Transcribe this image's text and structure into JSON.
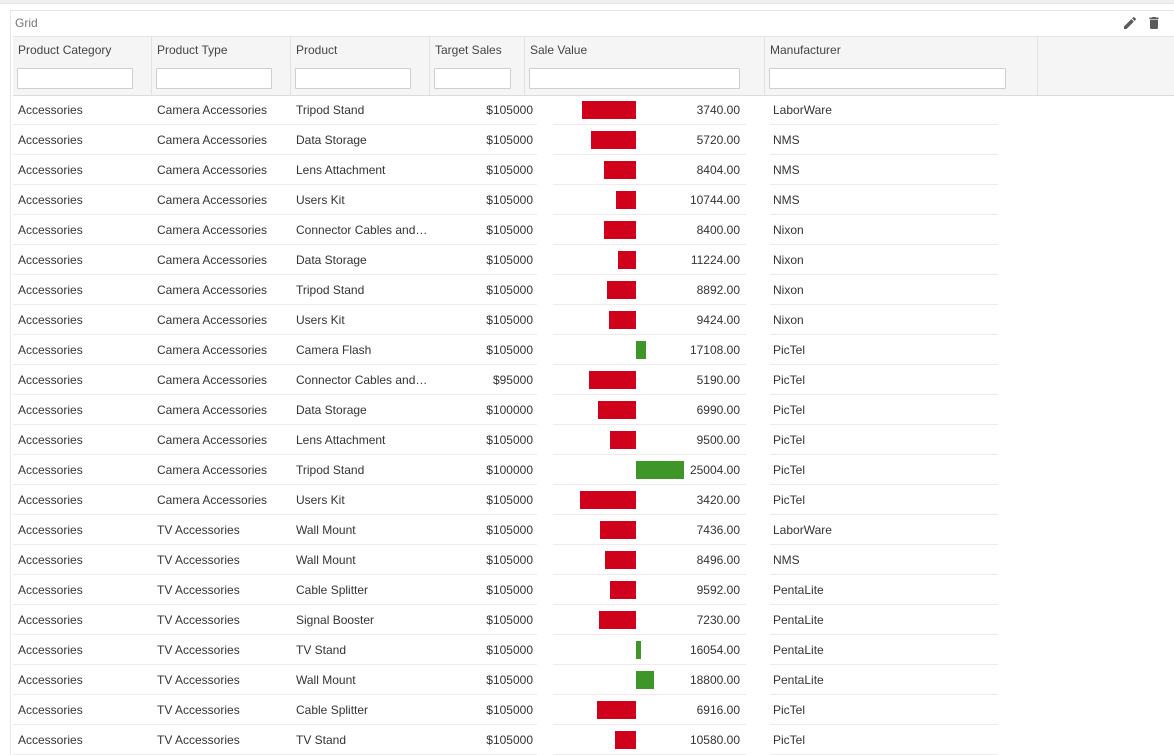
{
  "panel": {
    "title": "Grid",
    "edit_icon": "pencil-icon",
    "delete_icon": "trash-icon"
  },
  "colors": {
    "positive": "#3f9628",
    "negative": "#d0021b"
  },
  "columns": [
    {
      "key": "category",
      "label": "Product Category",
      "filter_value": ""
    },
    {
      "key": "type",
      "label": "Product Type",
      "filter_value": ""
    },
    {
      "key": "product",
      "label": "Product",
      "filter_value": ""
    },
    {
      "key": "target",
      "label": "Target Sales",
      "filter_value": ""
    },
    {
      "key": "sale",
      "label": "Sale Value",
      "filter_value": ""
    },
    {
      "key": "manufacturer",
      "label": "Manufacturer",
      "filter_value": ""
    }
  ],
  "sale_baseline": 15000,
  "rows": [
    {
      "category": "Accessories",
      "type": "Camera Accessories",
      "product": "Tripod Stand",
      "target": "$105000",
      "sale": "3740.00",
      "manufacturer": "LaborWare"
    },
    {
      "category": "Accessories",
      "type": "Camera Accessories",
      "product": "Data Storage",
      "target": "$105000",
      "sale": "5720.00",
      "manufacturer": "NMS"
    },
    {
      "category": "Accessories",
      "type": "Camera Accessories",
      "product": "Lens Attachment",
      "target": "$105000",
      "sale": "8404.00",
      "manufacturer": "NMS"
    },
    {
      "category": "Accessories",
      "type": "Camera Accessories",
      "product": "Users Kit",
      "target": "$105000",
      "sale": "10744.00",
      "manufacturer": "NMS"
    },
    {
      "category": "Accessories",
      "type": "Camera Accessories",
      "product": "Connector Cables and Wires",
      "target": "$105000",
      "sale": "8400.00",
      "manufacturer": "Nixon"
    },
    {
      "category": "Accessories",
      "type": "Camera Accessories",
      "product": "Data Storage",
      "target": "$105000",
      "sale": "11224.00",
      "manufacturer": "Nixon"
    },
    {
      "category": "Accessories",
      "type": "Camera Accessories",
      "product": "Tripod Stand",
      "target": "$105000",
      "sale": "8892.00",
      "manufacturer": "Nixon"
    },
    {
      "category": "Accessories",
      "type": "Camera Accessories",
      "product": "Users Kit",
      "target": "$105000",
      "sale": "9424.00",
      "manufacturer": "Nixon"
    },
    {
      "category": "Accessories",
      "type": "Camera Accessories",
      "product": "Camera Flash",
      "target": "$105000",
      "sale": "17108.00",
      "manufacturer": "PicTel"
    },
    {
      "category": "Accessories",
      "type": "Camera Accessories",
      "product": "Connector Cables and Wires",
      "target": "$95000",
      "sale": "5190.00",
      "manufacturer": "PicTel"
    },
    {
      "category": "Accessories",
      "type": "Camera Accessories",
      "product": "Data Storage",
      "target": "$100000",
      "sale": "6990.00",
      "manufacturer": "PicTel"
    },
    {
      "category": "Accessories",
      "type": "Camera Accessories",
      "product": "Lens Attachment",
      "target": "$105000",
      "sale": "9500.00",
      "manufacturer": "PicTel"
    },
    {
      "category": "Accessories",
      "type": "Camera Accessories",
      "product": "Tripod Stand",
      "target": "$100000",
      "sale": "25004.00",
      "manufacturer": "PicTel"
    },
    {
      "category": "Accessories",
      "type": "Camera Accessories",
      "product": "Users Kit",
      "target": "$105000",
      "sale": "3420.00",
      "manufacturer": "PicTel"
    },
    {
      "category": "Accessories",
      "type": "TV Accessories",
      "product": "Wall Mount",
      "target": "$105000",
      "sale": "7436.00",
      "manufacturer": "LaborWare"
    },
    {
      "category": "Accessories",
      "type": "TV Accessories",
      "product": "Wall Mount",
      "target": "$105000",
      "sale": "8496.00",
      "manufacturer": "NMS"
    },
    {
      "category": "Accessories",
      "type": "TV Accessories",
      "product": "Cable Splitter",
      "target": "$105000",
      "sale": "9592.00",
      "manufacturer": "PentaLite"
    },
    {
      "category": "Accessories",
      "type": "TV Accessories",
      "product": "Signal Booster",
      "target": "$105000",
      "sale": "7230.00",
      "manufacturer": "PentaLite"
    },
    {
      "category": "Accessories",
      "type": "TV Accessories",
      "product": "TV Stand",
      "target": "$105000",
      "sale": "16054.00",
      "manufacturer": "PentaLite"
    },
    {
      "category": "Accessories",
      "type": "TV Accessories",
      "product": "Wall Mount",
      "target": "$105000",
      "sale": "18800.00",
      "manufacturer": "PentaLite"
    },
    {
      "category": "Accessories",
      "type": "TV Accessories",
      "product": "Cable Splitter",
      "target": "$105000",
      "sale": "6916.00",
      "manufacturer": "PicTel"
    },
    {
      "category": "Accessories",
      "type": "TV Accessories",
      "product": "TV Stand",
      "target": "$105000",
      "sale": "10580.00",
      "manufacturer": "PicTel"
    }
  ]
}
